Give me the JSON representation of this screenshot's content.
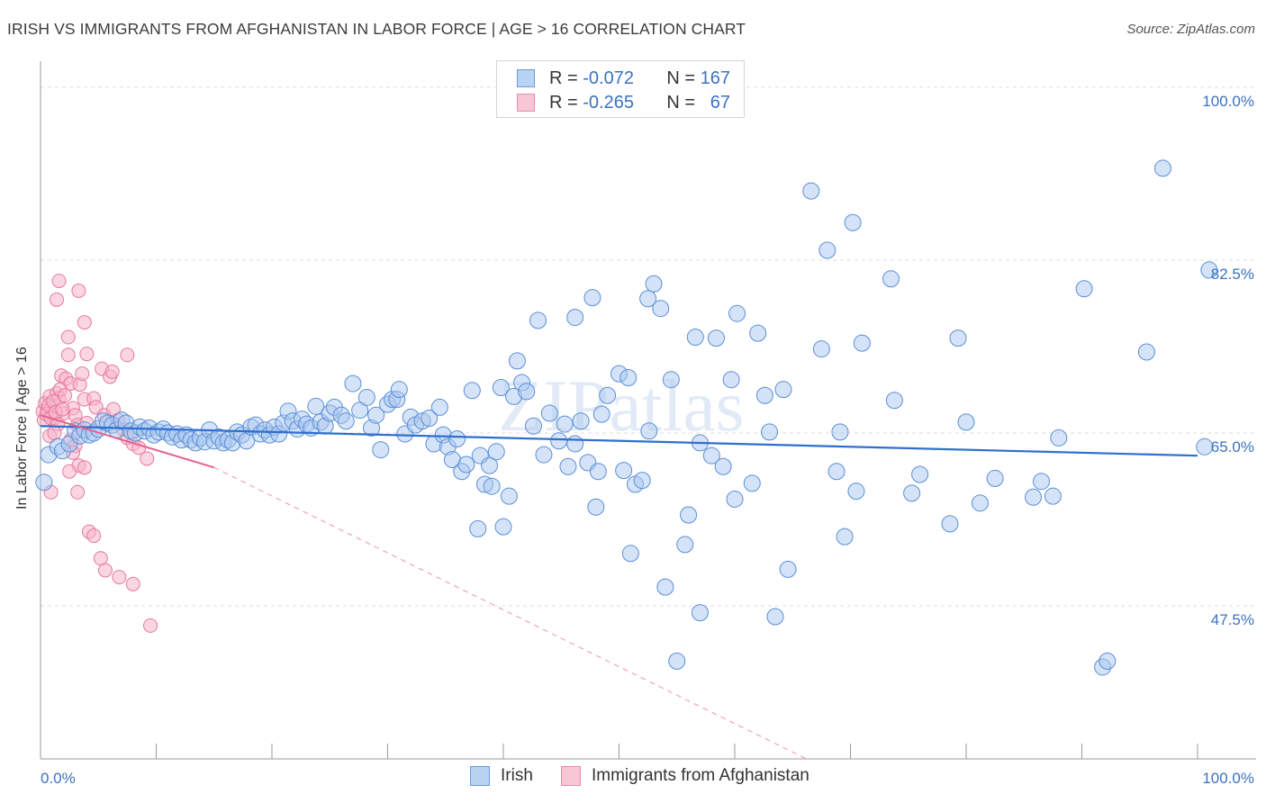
{
  "title": "IRISH VS IMMIGRANTS FROM AFGHANISTAN IN LABOR FORCE | AGE > 16 CORRELATION CHART",
  "source": "Source: ZipAtlas.com",
  "watermark": "ZIPatlas",
  "legend": {
    "rows": [
      {
        "r_label": "R =",
        "r_value": "-0.072",
        "n_label": "N =",
        "n_value": "167"
      },
      {
        "r_label": "R =",
        "r_value": "-0.265",
        "n_label": "N =",
        "n_value": "67"
      }
    ]
  },
  "bottom_legend": {
    "irish": "Irish",
    "afghan": "Immigrants from Afghanistan"
  },
  "colors": {
    "irish_fill": "#a9c8f0",
    "irish_stroke": "#5b8fd6",
    "irish_line": "#2f6fcf",
    "afghan_fill": "#f6b5ca",
    "afghan_stroke": "#e8789c",
    "afghan_line": "#e8608c",
    "axis_text": "#3a72c4",
    "grid": "#dddddd"
  },
  "chart_data": {
    "type": "scatter",
    "title": "IRISH VS IMMIGRANTS FROM AFGHANISTAN IN LABOR FORCE | AGE > 16 CORRELATION CHART",
    "xlabel": "",
    "ylabel": "In Labor Force | Age > 16",
    "xlim": [
      0,
      100
    ],
    "ylim": [
      32,
      102
    ],
    "x_tick_labels": [
      "0.0%",
      "100.0%"
    ],
    "y_ticks": [
      47.5,
      65.0,
      82.5,
      100.0
    ],
    "y_tick_labels": [
      "47.5%",
      "65.0%",
      "82.5%",
      "100.0%"
    ],
    "grid": true,
    "series": [
      {
        "name": "Irish",
        "R": -0.072,
        "N": 167,
        "trend": {
          "x": [
            0,
            100
          ],
          "y": [
            65.7,
            62.7
          ]
        },
        "points": [
          [
            0.3,
            60.0
          ],
          [
            0.7,
            62.8
          ],
          [
            1.5,
            63.6
          ],
          [
            1.9,
            63.2
          ],
          [
            2.5,
            63.9
          ],
          [
            3,
            65.2
          ],
          [
            3.4,
            64.7
          ],
          [
            3.8,
            65.3
          ],
          [
            4.2,
            64.8
          ],
          [
            4.6,
            65.0
          ],
          [
            5,
            65.4
          ],
          [
            5.4,
            66.2
          ],
          [
            5.8,
            66.0
          ],
          [
            6.2,
            65.8
          ],
          [
            6.6,
            65.3
          ],
          [
            7,
            66.3
          ],
          [
            7.4,
            66.0
          ],
          [
            7.8,
            65.2
          ],
          [
            8.2,
            65.0
          ],
          [
            8.6,
            65.6
          ],
          [
            9,
            65.2
          ],
          [
            9.4,
            65.5
          ],
          [
            9.8,
            64.8
          ],
          [
            10.2,
            65.1
          ],
          [
            10.6,
            65.4
          ],
          [
            11,
            65.0
          ],
          [
            11.4,
            64.6
          ],
          [
            11.8,
            64.9
          ],
          [
            12.2,
            64.3
          ],
          [
            12.6,
            64.8
          ],
          [
            13,
            64.3
          ],
          [
            13.4,
            64.0
          ],
          [
            13.8,
            64.5
          ],
          [
            14.2,
            64.1
          ],
          [
            14.6,
            65.3
          ],
          [
            15,
            64.2
          ],
          [
            15.4,
            64.6
          ],
          [
            15.8,
            64.0
          ],
          [
            16.2,
            64.3
          ],
          [
            16.6,
            64.0
          ],
          [
            17,
            65.1
          ],
          [
            17.4,
            64.8
          ],
          [
            17.8,
            64.2
          ],
          [
            18.2,
            65.6
          ],
          [
            18.6,
            65.8
          ],
          [
            19,
            64.9
          ],
          [
            19.4,
            65.3
          ],
          [
            19.8,
            64.8
          ],
          [
            20.2,
            65.6
          ],
          [
            20.6,
            64.9
          ],
          [
            21,
            66.0
          ],
          [
            21.4,
            67.2
          ],
          [
            21.8,
            66.2
          ],
          [
            22.2,
            65.4
          ],
          [
            22.6,
            66.4
          ],
          [
            23,
            65.9
          ],
          [
            23.4,
            65.5
          ],
          [
            23.8,
            67.7
          ],
          [
            24.2,
            66.1
          ],
          [
            24.6,
            65.7
          ],
          [
            25,
            67.0
          ],
          [
            25.4,
            67.6
          ],
          [
            26,
            66.8
          ],
          [
            26.4,
            66.2
          ],
          [
            27,
            70.0
          ],
          [
            27.6,
            67.3
          ],
          [
            28.2,
            68.6
          ],
          [
            28.6,
            65.5
          ],
          [
            29,
            66.8
          ],
          [
            29.4,
            63.3
          ],
          [
            30,
            67.9
          ],
          [
            30.4,
            68.4
          ],
          [
            30.8,
            68.4
          ],
          [
            31,
            69.4
          ],
          [
            31.5,
            64.9
          ],
          [
            32,
            66.6
          ],
          [
            32.4,
            65.8
          ],
          [
            33,
            66.2
          ],
          [
            33.6,
            66.5
          ],
          [
            34,
            63.9
          ],
          [
            34.5,
            67.6
          ],
          [
            34.8,
            64.8
          ],
          [
            35.2,
            63.6
          ],
          [
            35.6,
            62.3
          ],
          [
            36,
            64.4
          ],
          [
            36.4,
            61.1
          ],
          [
            36.8,
            61.8
          ],
          [
            37.3,
            69.3
          ],
          [
            37.8,
            55.3
          ],
          [
            38,
            62.7
          ],
          [
            38.4,
            59.8
          ],
          [
            38.8,
            61.7
          ],
          [
            39,
            59.6
          ],
          [
            39.4,
            63.1
          ],
          [
            39.8,
            69.6
          ],
          [
            40,
            55.5
          ],
          [
            40.5,
            58.6
          ],
          [
            40.9,
            68.7
          ],
          [
            41.2,
            72.3
          ],
          [
            41.6,
            70.1
          ],
          [
            42,
            69.2
          ],
          [
            42.6,
            65.7
          ],
          [
            43,
            76.4
          ],
          [
            43.5,
            62.8
          ],
          [
            44,
            67.0
          ],
          [
            44.8,
            64.2
          ],
          [
            45.3,
            65.9
          ],
          [
            45.6,
            61.6
          ],
          [
            46.2,
            76.7
          ],
          [
            46.7,
            66.2
          ],
          [
            47.3,
            62.0
          ],
          [
            47.7,
            78.7
          ],
          [
            48,
            57.5
          ],
          [
            48.5,
            66.9
          ],
          [
            49,
            68.8
          ],
          [
            50,
            71.0
          ],
          [
            50.4,
            61.2
          ],
          [
            50.8,
            70.6
          ],
          [
            51,
            52.8
          ],
          [
            51.4,
            59.8
          ],
          [
            52,
            60.2
          ],
          [
            52.5,
            78.6
          ],
          [
            53,
            80.1
          ],
          [
            53.6,
            77.6
          ],
          [
            54,
            49.4
          ],
          [
            54.5,
            70.4
          ],
          [
            55.7,
            53.7
          ],
          [
            56,
            56.7
          ],
          [
            56.6,
            74.7
          ],
          [
            57,
            64.0
          ],
          [
            58.4,
            74.6
          ],
          [
            59,
            61.6
          ],
          [
            59.7,
            70.4
          ],
          [
            60.2,
            77.1
          ],
          [
            61.5,
            59.9
          ],
          [
            62,
            75.1
          ],
          [
            62.6,
            68.8
          ],
          [
            63,
            65.1
          ],
          [
            63.5,
            46.4
          ],
          [
            64.2,
            69.4
          ],
          [
            64.6,
            51.2
          ],
          [
            66.6,
            89.5
          ],
          [
            67.5,
            73.5
          ],
          [
            68,
            83.5
          ],
          [
            68.8,
            61.1
          ],
          [
            69.1,
            65.1
          ],
          [
            69.5,
            54.5
          ],
          [
            70.2,
            86.3
          ],
          [
            70.5,
            59.1
          ],
          [
            71,
            74.1
          ],
          [
            73.5,
            80.6
          ],
          [
            73.8,
            68.3
          ],
          [
            75.3,
            58.9
          ],
          [
            76,
            60.8
          ],
          [
            78.6,
            55.8
          ],
          [
            79.3,
            74.6
          ],
          [
            80,
            66.1
          ],
          [
            81.2,
            57.9
          ],
          [
            82.5,
            60.4
          ],
          [
            85.8,
            58.5
          ],
          [
            86.5,
            60.1
          ],
          [
            87.5,
            58.6
          ],
          [
            88,
            64.5
          ],
          [
            90.2,
            79.6
          ],
          [
            91.8,
            41.3
          ],
          [
            92.2,
            41.9
          ],
          [
            95.6,
            73.2
          ],
          [
            97,
            91.8
          ],
          [
            100.6,
            63.6
          ],
          [
            101,
            81.5
          ],
          [
            55,
            41.9
          ],
          [
            57,
            46.8
          ],
          [
            58,
            62.7
          ],
          [
            60,
            58.3
          ],
          [
            52.6,
            65.2
          ],
          [
            48.2,
            61.1
          ],
          [
            46.2,
            63.9
          ]
        ]
      },
      {
        "name": "Immigrants from Afghanistan",
        "R": -0.265,
        "N": 67,
        "trend": {
          "x": [
            0,
            15
          ],
          "y": [
            66.8,
            61.5
          ]
        },
        "trend_extended": {
          "x": [
            15,
            66.2
          ],
          "y": [
            61.5,
            32.0
          ]
        },
        "points": [
          [
            0.2,
            67.2
          ],
          [
            0.4,
            68.0
          ],
          [
            0.6,
            67.3
          ],
          [
            0.8,
            68.7
          ],
          [
            1.0,
            67.6
          ],
          [
            1.2,
            66.5
          ],
          [
            1.4,
            69.0
          ],
          [
            1.6,
            68.5
          ],
          [
            1.8,
            70.8
          ],
          [
            2.0,
            67.0
          ],
          [
            2.2,
            70.5
          ],
          [
            2.4,
            72.9
          ],
          [
            2.6,
            70.0
          ],
          [
            2.8,
            67.5
          ],
          [
            3.0,
            66.8
          ],
          [
            3.2,
            65.8
          ],
          [
            3.4,
            69.9
          ],
          [
            3.6,
            71.0
          ],
          [
            3.8,
            68.4
          ],
          [
            4.0,
            66.0
          ],
          [
            0.3,
            66.3
          ],
          [
            0.5,
            66.9
          ],
          [
            0.7,
            67.8
          ],
          [
            0.9,
            66.5
          ],
          [
            1.1,
            68.2
          ],
          [
            1.3,
            67.1
          ],
          [
            1.5,
            65.9
          ],
          [
            1.7,
            69.4
          ],
          [
            1.9,
            67.4
          ],
          [
            2.1,
            68.8
          ],
          [
            0.8,
            64.7
          ],
          [
            1.2,
            65.0
          ],
          [
            2.6,
            64.3
          ],
          [
            3.0,
            63.7
          ],
          [
            2.8,
            63.0
          ],
          [
            3.3,
            61.7
          ],
          [
            3.8,
            61.5
          ],
          [
            2.5,
            61.1
          ],
          [
            3.2,
            59.0
          ],
          [
            0.9,
            59.0
          ],
          [
            1.4,
            78.5
          ],
          [
            1.6,
            80.4
          ],
          [
            3.3,
            79.4
          ],
          [
            2.4,
            74.7
          ],
          [
            3.8,
            76.2
          ],
          [
            4.0,
            73.0
          ],
          [
            5.3,
            71.5
          ],
          [
            6.0,
            70.7
          ],
          [
            6.2,
            71.2
          ],
          [
            7.5,
            72.9
          ],
          [
            4.6,
            68.5
          ],
          [
            4.8,
            67.6
          ],
          [
            5.5,
            66.8
          ],
          [
            6.3,
            67.4
          ],
          [
            6.7,
            66.3
          ],
          [
            7.1,
            65.4
          ],
          [
            7.5,
            64.5
          ],
          [
            8.0,
            63.9
          ],
          [
            8.5,
            63.5
          ],
          [
            9.2,
            62.4
          ],
          [
            4.2,
            55.0
          ],
          [
            4.6,
            54.6
          ],
          [
            5.2,
            52.3
          ],
          [
            5.6,
            51.1
          ],
          [
            6.8,
            50.4
          ],
          [
            8.0,
            49.7
          ],
          [
            9.5,
            45.5
          ]
        ]
      }
    ]
  }
}
